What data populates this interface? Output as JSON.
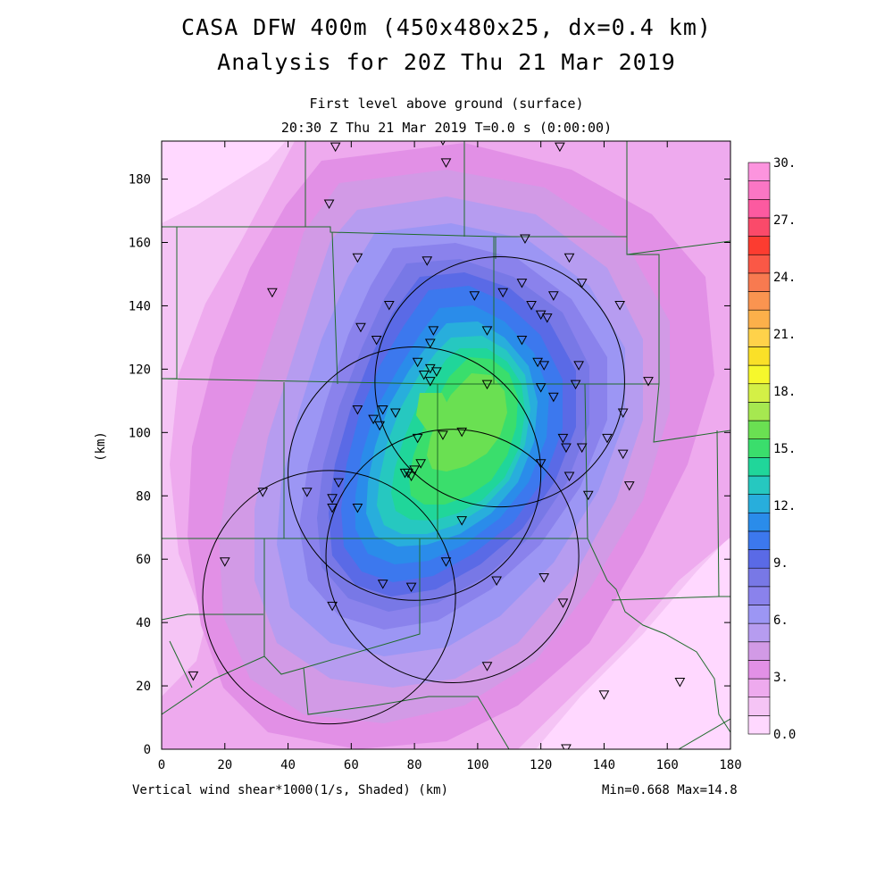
{
  "titles": {
    "main": "CASA DFW 400m (450x480x25, dx=0.4 km)",
    "analysis": "Analysis for 20Z Thu 21 Mar 2019",
    "level": "First level above ground (surface)",
    "time": "20:30 Z Thu 21 Mar 2019    T=0.0 s (0:00:00)"
  },
  "footer": {
    "left": "Vertical wind shear*1000(1/s, Shaded)  (km)",
    "right": "Min=0.668 Max=14.8"
  },
  "map_axes": {
    "ylabel": "(km)",
    "x_range": [
      0,
      180
    ],
    "y_range": [
      0,
      192
    ],
    "x_ticks": [
      "0",
      "20",
      "40",
      "60",
      "80",
      "100",
      "120",
      "140",
      "160",
      "180"
    ],
    "y_ticks": [
      "0",
      "20",
      "40",
      "60",
      "80",
      "100",
      "120",
      "140",
      "160",
      "180"
    ]
  },
  "colorbar": {
    "labels": [
      "0.0",
      "3.",
      "6.",
      "9.",
      "12.",
      "15.",
      "18.",
      "21.",
      "24.",
      "27.",
      "30."
    ],
    "colors": [
      "#ffd8ff",
      "#f5c4f5",
      "#eeaaee",
      "#e290e6",
      "#d29ae6",
      "#b69cf0",
      "#9c96f4",
      "#8a82ec",
      "#7878e6",
      "#5a6ae6",
      "#3c78ee",
      "#2a8cea",
      "#28aedc",
      "#26c8c0",
      "#20d69a",
      "#3ade6c",
      "#6ae052",
      "#a6e850",
      "#d4f046",
      "#f6f82c",
      "#fae028",
      "#ffd24a",
      "#fcb04a",
      "#fa9450",
      "#f87a50",
      "#fa5846",
      "#fc3c30",
      "#fa4a6a",
      "#fc5aa0",
      "#fa76c4",
      "#fc94de"
    ]
  },
  "shading": {
    "max": 14.8,
    "min": 0.668
  },
  "radar_rings": [
    {
      "cx": 107,
      "cy": 116,
      "r": 39.5
    },
    {
      "cx": 80,
      "cy": 87,
      "r": 40
    },
    {
      "cx": 92,
      "cy": 61,
      "r": 40
    },
    {
      "cx": 53,
      "cy": 48,
      "r": 40
    }
  ],
  "stations": [
    [
      55,
      190
    ],
    [
      89,
      192
    ],
    [
      90,
      185
    ],
    [
      126,
      190
    ],
    [
      53,
      172
    ],
    [
      115,
      161
    ],
    [
      62,
      155
    ],
    [
      84,
      154
    ],
    [
      129,
      155
    ],
    [
      35,
      144
    ],
    [
      114,
      147
    ],
    [
      133,
      147
    ],
    [
      108,
      144
    ],
    [
      99,
      143
    ],
    [
      124,
      143
    ],
    [
      117,
      140
    ],
    [
      145,
      140
    ],
    [
      72,
      140
    ],
    [
      120,
      137
    ],
    [
      122,
      136
    ],
    [
      63,
      133
    ],
    [
      86,
      132
    ],
    [
      103,
      132
    ],
    [
      68,
      129
    ],
    [
      85,
      128
    ],
    [
      114,
      129
    ],
    [
      81,
      122
    ],
    [
      85,
      120
    ],
    [
      87,
      119
    ],
    [
      83,
      118
    ],
    [
      132,
      121
    ],
    [
      119,
      122
    ],
    [
      121,
      121
    ],
    [
      85,
      116
    ],
    [
      120,
      114
    ],
    [
      103,
      115
    ],
    [
      131,
      115
    ],
    [
      124,
      111
    ],
    [
      154,
      116
    ],
    [
      70,
      107
    ],
    [
      62,
      107
    ],
    [
      74,
      106
    ],
    [
      67,
      104
    ],
    [
      69,
      102
    ],
    [
      146,
      106
    ],
    [
      95,
      100
    ],
    [
      89,
      99
    ],
    [
      81,
      98
    ],
    [
      127,
      98
    ],
    [
      141,
      98
    ],
    [
      146,
      93
    ],
    [
      128,
      95
    ],
    [
      133,
      95
    ],
    [
      120,
      90
    ],
    [
      82,
      90
    ],
    [
      80,
      88
    ],
    [
      78,
      87
    ],
    [
      79,
      86
    ],
    [
      77,
      87
    ],
    [
      129,
      86
    ],
    [
      32,
      81
    ],
    [
      46,
      81
    ],
    [
      54,
      79
    ],
    [
      148,
      83
    ],
    [
      56,
      84
    ],
    [
      54,
      76
    ],
    [
      62,
      76
    ],
    [
      135,
      80
    ],
    [
      95,
      72
    ],
    [
      20,
      59
    ],
    [
      90,
      59
    ],
    [
      70,
      52
    ],
    [
      79,
      51
    ],
    [
      106,
      53
    ],
    [
      121,
      54
    ],
    [
      54,
      45
    ],
    [
      127,
      46
    ],
    [
      103,
      26
    ],
    [
      10,
      23
    ],
    [
      140,
      17
    ],
    [
      164,
      21
    ],
    [
      128,
      0
    ]
  ]
}
